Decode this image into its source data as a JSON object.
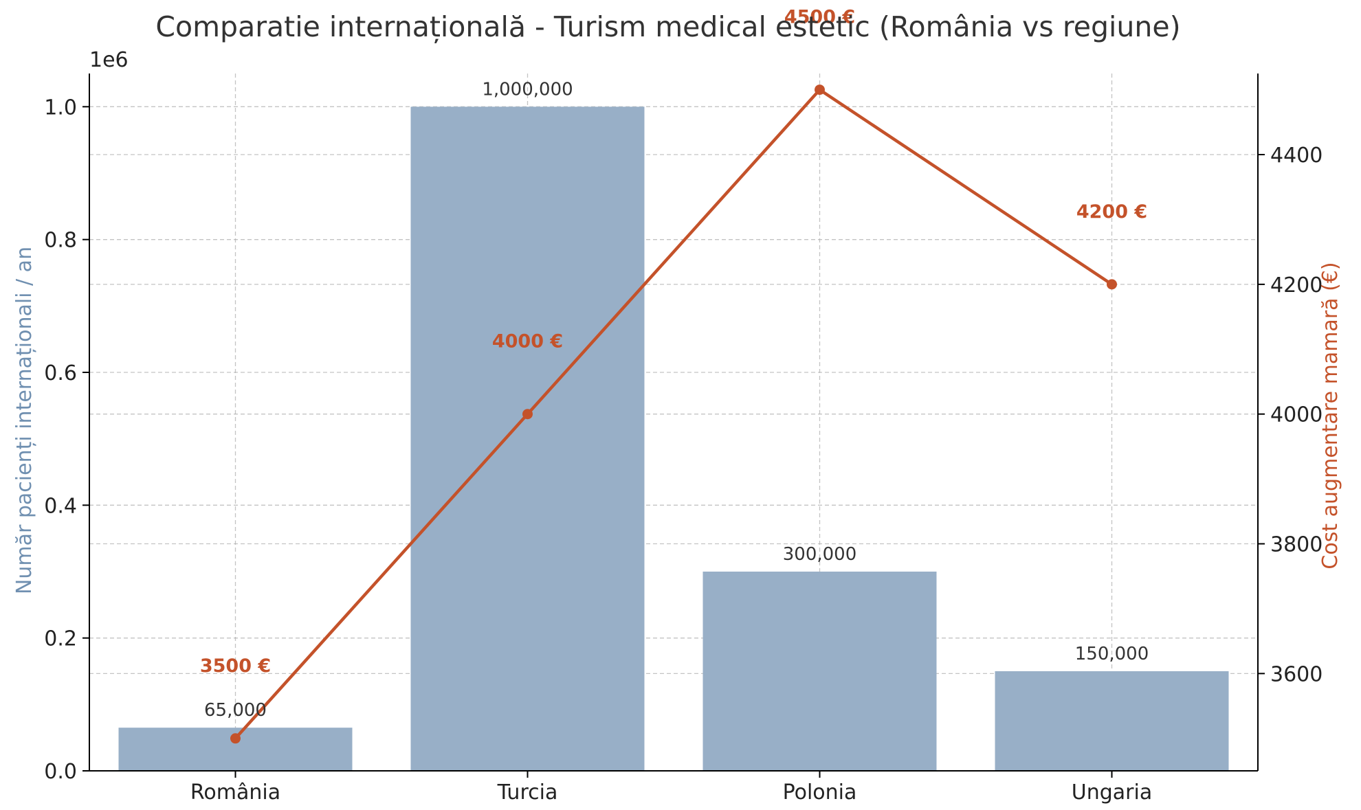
{
  "chart_data": {
    "type": "bar",
    "title": "Comparatie internațională - Turism medical estetic (România vs regiune)",
    "categories": [
      "România",
      "Turcia",
      "Polonia",
      "Ungaria"
    ],
    "bars": {
      "name": "Număr pacienți internaționali / an",
      "values": [
        65000,
        1000000,
        300000,
        150000
      ],
      "labels": [
        "65,000",
        "1,000,000",
        "300,000",
        "150,000"
      ],
      "color": "#98afc7"
    },
    "line": {
      "name": "Cost augmentare mamară (€)",
      "values": [
        3500,
        4000,
        4500,
        4200
      ],
      "labels": [
        "3500 €",
        "4000 €",
        "4500 €",
        "4200 €"
      ],
      "color": "#c4522a"
    },
    "y_left": {
      "label": "Număr pacienți internaționali / an",
      "offset_text": "1e6",
      "ylim": [
        0,
        1050000
      ],
      "ticks": [
        0,
        200000,
        400000,
        600000,
        800000,
        1000000
      ],
      "tick_labels": [
        "0.0",
        "0.2",
        "0.4",
        "0.6",
        "0.8",
        "1.0"
      ],
      "color": "#6f8fb0"
    },
    "y_right": {
      "label": "Cost augmentare mamară (€)",
      "ylim": [
        3450,
        4525
      ],
      "ticks": [
        3600,
        3800,
        4000,
        4200,
        4400
      ],
      "tick_labels": [
        "3600",
        "3800",
        "4000",
        "4200",
        "4400"
      ],
      "color": "#c4522a"
    },
    "grid": true,
    "legend": "none"
  }
}
